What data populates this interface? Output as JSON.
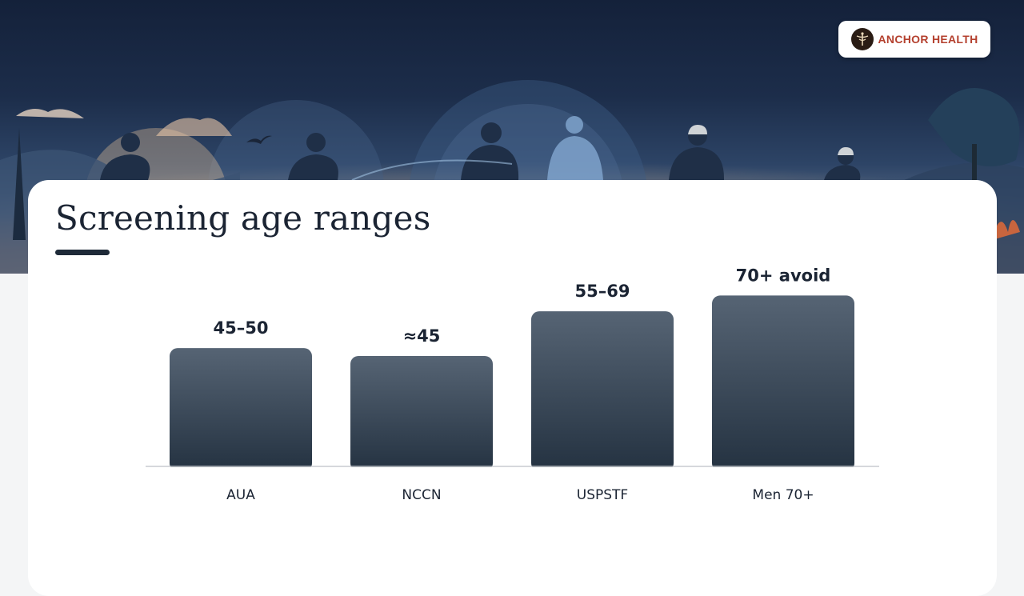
{
  "brand": {
    "name": "ANCHOR HEALTH",
    "logo_icon": "caduceus-icon",
    "accent": "#b4402e"
  },
  "slide": {
    "title": "Screening age ranges"
  },
  "chart_data": {
    "type": "bar",
    "title": "Screening age ranges",
    "xlabel": "",
    "ylabel": "",
    "categories": [
      "AUA",
      "NCCN",
      "USPSTF",
      "Men 70+"
    ],
    "values": [
      45,
      42,
      59,
      65
    ],
    "value_labels": [
      "45–50",
      "≈45",
      "55–69",
      "70+ avoid"
    ],
    "ylim": [
      0,
      70
    ],
    "grid": false,
    "legend": "none",
    "bar_color_top": "#566474",
    "bar_color_bottom": "#243241"
  }
}
